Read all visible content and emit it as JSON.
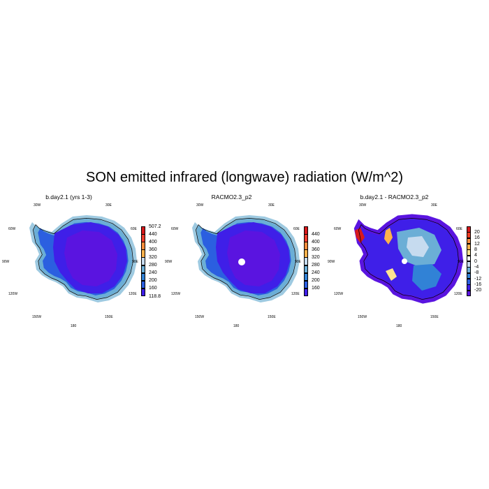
{
  "title": "SON emitted infrared (longwave) radiation (W/m^2)",
  "lonlat_labels": [
    "30W",
    "30E",
    "60W",
    "60E",
    "90W",
    "90E",
    "120W",
    "120E",
    "150W",
    "150E",
    "180"
  ],
  "panels": [
    {
      "title": "b.day2.1 (yrs 1-3)",
      "map_type": "absolute",
      "colorbar": {
        "labels": [
          "507.2",
          "440",
          "400",
          "360",
          "320",
          "280",
          "240",
          "200",
          "160",
          "118.8"
        ],
        "colors": [
          "#d7191c",
          "#ef3b2c",
          "#fd8d3c",
          "#feb24c",
          "#c6dbef",
          "#6baed6",
          "#3182d6",
          "#2b5fe0",
          "#3f1fe8"
        ]
      }
    },
    {
      "title": "RACMO2.3_p2",
      "map_type": "absolute",
      "colorbar": {
        "labels": [
          "440",
          "400",
          "360",
          "320",
          "280",
          "240",
          "200",
          "160"
        ],
        "colors": [
          "#d7191c",
          "#ef3b2c",
          "#fd8d3c",
          "#feb24c",
          "#c6dbef",
          "#6baed6",
          "#3182d6",
          "#2b5fe0",
          "#3f1fe8"
        ]
      }
    },
    {
      "title": "b.day2.1 - RACMO2.3_p2",
      "map_type": "difference",
      "colorbar": {
        "labels": [
          "20",
          "16",
          "12",
          "8",
          "4",
          "0",
          "-4",
          "-8",
          "-12",
          "-16",
          "-20"
        ],
        "colors": [
          "#d7191c",
          "#f03b20",
          "#fd8d3c",
          "#feb24c",
          "#fee391",
          "#ffffff",
          "#c6dbef",
          "#6baed6",
          "#3182d6",
          "#2b5fe0",
          "#3f1fe8",
          "#5a14e0"
        ]
      }
    }
  ],
  "colors": {
    "interior": "#5a14e0",
    "mid": "#3f1fe8",
    "ring": "#2b5fe0",
    "coast": "#6baed6",
    "outer": "#9ecae1",
    "coastline": "#000000"
  }
}
